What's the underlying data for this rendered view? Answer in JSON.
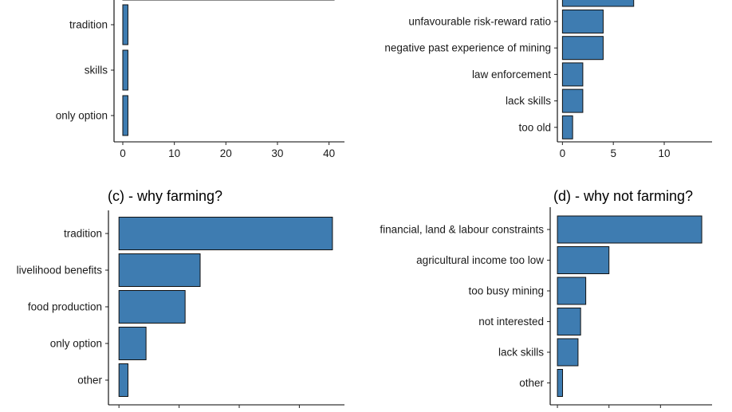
{
  "colors": {
    "bar_fill": "#3e7cb1",
    "bar_stroke": "#111111"
  },
  "chart_data": [
    {
      "type": "bar",
      "orientation": "horizontal",
      "title": "",
      "categories": [
        "tradition",
        "skills",
        "only option"
      ],
      "values": [
        1,
        1,
        1
      ],
      "partially_visible_top_bar": {
        "label": "",
        "value": 41
      },
      "x_ticks": [
        0,
        10,
        20,
        30,
        40
      ],
      "xlim": [
        -1.7,
        43
      ]
    },
    {
      "type": "bar",
      "orientation": "horizontal",
      "title": "",
      "partially_visible_top_bar": {
        "label": "",
        "value": 7
      },
      "categories": [
        "unfavourable risk-reward ratio",
        "negative past experience of mining",
        "law enforcement",
        "lack skills",
        "too old"
      ],
      "values": [
        4,
        4,
        2,
        2,
        1
      ],
      "x_ticks": [
        0,
        5,
        10
      ],
      "xlim": [
        -0.5,
        14.7
      ]
    },
    {
      "type": "bar",
      "orientation": "horizontal",
      "title": "(c) - why farming?",
      "categories": [
        "tradition",
        "livelihood benefits",
        "food production",
        "only option",
        "other"
      ],
      "values": [
        71,
        27,
        22,
        9,
        3
      ],
      "x_ticks": [
        0,
        20,
        40,
        60
      ],
      "xlim": [
        -3.5,
        75
      ]
    },
    {
      "type": "bar",
      "orientation": "horizontal",
      "title": "(d) - why not farming?",
      "categories": [
        "financial, land & labour constraints",
        "agricultural income too low",
        "too busy mining",
        "not interested",
        "lack skills",
        "other"
      ],
      "values": [
        56,
        20,
        11,
        9,
        8,
        2
      ],
      "x_ticks": [
        0,
        20,
        40
      ],
      "xlim": [
        -2.8,
        60
      ]
    }
  ]
}
